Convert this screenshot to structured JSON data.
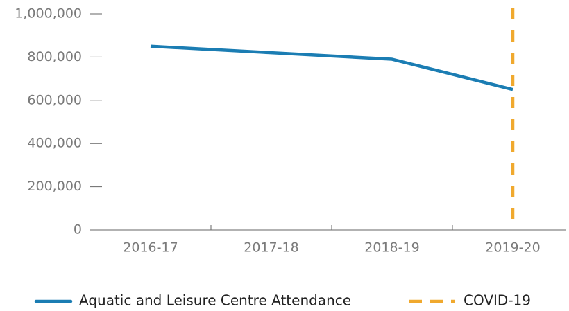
{
  "chart_data": {
    "type": "line",
    "categories": [
      "2016-17",
      "2017-18",
      "2018-19",
      "2019-20"
    ],
    "series": [
      {
        "name": "Aquatic and Leisure Centre Attendance",
        "color": "#1b7db3",
        "values": [
          850000,
          820000,
          790000,
          650000
        ]
      }
    ],
    "annotations": [
      {
        "label": "COVID-19",
        "x": "2019-20",
        "color": "#f0a92e"
      }
    ],
    "ylim": [
      0,
      1000000
    ],
    "yticks": [
      0,
      {
        "value": 200000,
        "label": "200,000"
      },
      {
        "value": 400000,
        "label": "400,000"
      },
      {
        "value": 600000,
        "label": "600,000"
      },
      {
        "value": 800000,
        "label": "800,000"
      },
      {
        "value": 1000000,
        "label": "1,000,000"
      }
    ],
    "legend": "bottom"
  }
}
